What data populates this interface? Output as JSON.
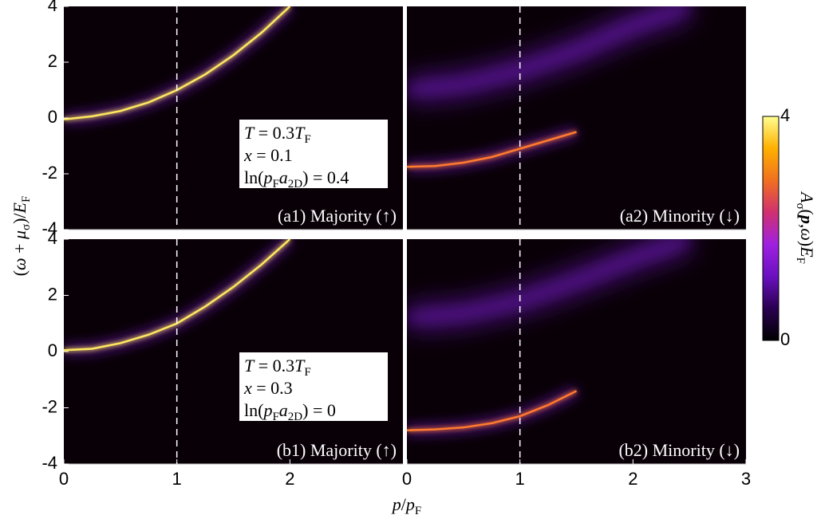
{
  "chart_data": [
    {
      "type": "line",
      "label": "(a1) Majority (↑)",
      "vline": 1,
      "x": [
        0,
        0.25,
        0.5,
        0.75,
        1,
        1.25,
        1.5,
        1.75,
        2
      ],
      "series": [
        {
          "color": "#ffe860",
          "style": "sharp",
          "values": [
            -0.05,
            0.06,
            0.25,
            0.56,
            1,
            1.56,
            2.25,
            3.06,
            4
          ]
        }
      ],
      "xlim": [
        0,
        3
      ],
      "ylim": [
        -4,
        4
      ],
      "xticks": [],
      "yticks": [
        4,
        2,
        0,
        -2,
        -4
      ],
      "annotation": [
        [
          {
            "t": "T",
            "s": "i"
          },
          {
            "t": " = 0.3",
            "s": ""
          },
          {
            "t": "T",
            "s": "i"
          },
          {
            "t": "F",
            "s": "sub"
          }
        ],
        [
          {
            "t": "x",
            "s": "i"
          },
          {
            "t": " = 0.1",
            "s": ""
          }
        ],
        [
          {
            "t": "ln(",
            "s": ""
          },
          {
            "t": "p",
            "s": "i"
          },
          {
            "t": "F",
            "s": "sub"
          },
          {
            "t": "a",
            "s": "i"
          },
          {
            "t": "2D",
            "s": "sub"
          },
          {
            "t": ") = 0.4",
            "s": ""
          }
        ]
      ]
    },
    {
      "type": "line",
      "label": "(a2) Minority (↓)",
      "vline": 1,
      "x": [
        0,
        0.25,
        0.5,
        0.75,
        1,
        1.25,
        1.5
      ],
      "series": [
        {
          "color": "#ff7a30",
          "style": "sharp",
          "values": [
            -1.75,
            -1.72,
            -1.6,
            -1.4,
            -1.1,
            -0.8,
            -0.5
          ]
        }
      ],
      "x2": [
        0,
        0.5,
        1,
        1.5,
        2,
        2.5
      ],
      "series2": [
        {
          "color": "#7a1fd0",
          "style": "broad",
          "values": [
            1.0,
            1.2,
            1.7,
            2.4,
            3.3,
            4.0
          ]
        }
      ],
      "xlim": [
        0,
        3
      ],
      "ylim": [
        -4,
        4
      ],
      "xticks": [],
      "yticks": []
    },
    {
      "type": "line",
      "label": "(b1) Majority (↑)",
      "vline": 1,
      "x": [
        0,
        0.25,
        0.5,
        0.75,
        1,
        1.25,
        1.5,
        1.75,
        2
      ],
      "series": [
        {
          "color": "#ffe860",
          "style": "sharp",
          "values": [
            0.05,
            0.1,
            0.3,
            0.6,
            1,
            1.6,
            2.3,
            3.1,
            4
          ]
        }
      ],
      "xlim": [
        0,
        3
      ],
      "ylim": [
        -4,
        4
      ],
      "xticks": [
        0,
        1,
        2
      ],
      "yticks": [
        4,
        2,
        0,
        -2,
        -4
      ],
      "annotation": [
        [
          {
            "t": "T",
            "s": "i"
          },
          {
            "t": " = 0.3",
            "s": ""
          },
          {
            "t": "T",
            "s": "i"
          },
          {
            "t": "F",
            "s": "sub"
          }
        ],
        [
          {
            "t": "x",
            "s": "i"
          },
          {
            "t": " = 0.3",
            "s": ""
          }
        ],
        [
          {
            "t": "ln(",
            "s": ""
          },
          {
            "t": "p",
            "s": "i"
          },
          {
            "t": "F",
            "s": "sub"
          },
          {
            "t": "a",
            "s": "i"
          },
          {
            "t": "2D",
            "s": "sub"
          },
          {
            "t": ") = 0",
            "s": ""
          }
        ]
      ]
    },
    {
      "type": "line",
      "label": "(b2) Minority (↓)",
      "vline": 1,
      "x": [
        0,
        0.25,
        0.5,
        0.75,
        1,
        1.25,
        1.5
      ],
      "series": [
        {
          "color": "#ff7a30",
          "style": "sharp",
          "values": [
            -2.8,
            -2.77,
            -2.7,
            -2.55,
            -2.3,
            -1.9,
            -1.4
          ]
        }
      ],
      "x2": [
        0,
        0.5,
        1,
        1.5,
        2,
        2.5
      ],
      "series2": [
        {
          "color": "#7a1fd0",
          "style": "broad",
          "values": [
            1.2,
            1.35,
            1.8,
            2.5,
            3.3,
            4.0
          ]
        }
      ],
      "xlim": [
        0,
        3
      ],
      "ylim": [
        -4,
        4
      ],
      "xticks": [
        0,
        1,
        2,
        3
      ],
      "yticks": []
    }
  ],
  "ylabel": [
    {
      "t": "(",
      "s": ""
    },
    {
      "t": "ω",
      "s": "i"
    },
    {
      "t": " + ",
      "s": ""
    },
    {
      "t": "μ",
      "s": "i"
    },
    {
      "t": "σ",
      "s": "sub"
    },
    {
      "t": ")/",
      "s": ""
    },
    {
      "t": "E",
      "s": "i"
    },
    {
      "t": "F",
      "s": "sub"
    }
  ],
  "xlabel": [
    {
      "t": "p",
      "s": "i"
    },
    {
      "t": "/",
      "s": ""
    },
    {
      "t": "p",
      "s": "i"
    },
    {
      "t": "F",
      "s": "sub"
    }
  ],
  "colorbar": {
    "zlim": [
      0,
      4
    ],
    "zticks": [
      0,
      4
    ],
    "colormap": [
      "#000000",
      "#2a0050",
      "#6a10c0",
      "#a020e0",
      "#d03070",
      "#f07020",
      "#ffb000",
      "#ffff90"
    ],
    "label": [
      {
        "t": "A",
        "s": "i"
      },
      {
        "t": "σ",
        "s": "sub"
      },
      {
        "t": "(",
        "s": ""
      },
      {
        "t": "p",
        "s": "b"
      },
      {
        "t": ",",
        "s": ""
      },
      {
        "t": "ω",
        "s": "i"
      },
      {
        "t": ")",
        "s": ""
      },
      {
        "t": "E",
        "s": "i"
      },
      {
        "t": "F",
        "s": "sub"
      }
    ]
  }
}
